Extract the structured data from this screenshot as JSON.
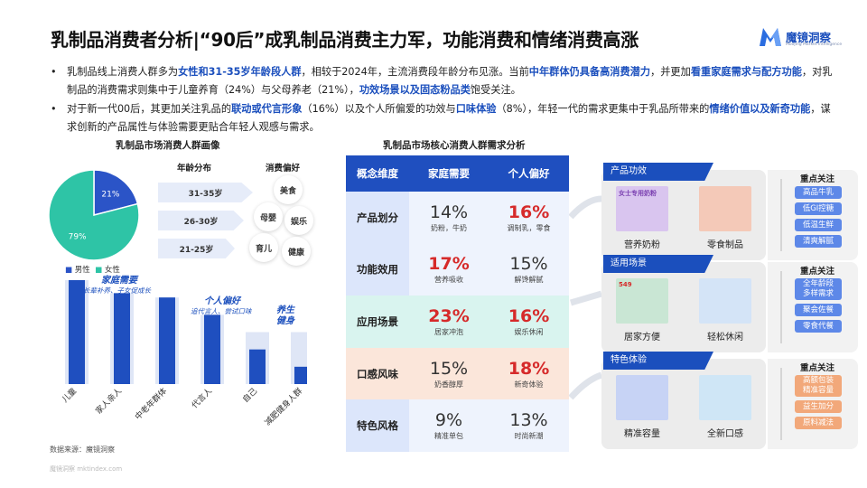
{
  "title": "乳制品消费者分析|“90后”成乳制品消费主力军，功能消费和情绪消费高涨",
  "logo": {
    "name": "魔镜洞察",
    "sub": "Moojing Market Intelligence"
  },
  "bullets": [
    {
      "segments": [
        {
          "t": "乳制品线上消费人群多为",
          "h": false
        },
        {
          "t": "女性和31-35岁年龄段人群",
          "h": true
        },
        {
          "t": "，相较于2024年，主流消费段年龄分布见涨。当前",
          "h": false
        },
        {
          "t": "中年群体仍具备高消费潜力",
          "h": true
        },
        {
          "t": "，并更加",
          "h": false
        },
        {
          "t": "看重家庭需求与配方功能",
          "h": true
        },
        {
          "t": "，对乳制品的消费需求则集中于儿童养育（24%）与父母养老（21%），",
          "h": false
        },
        {
          "t": "功效场景以及固态粉品类",
          "h": true
        },
        {
          "t": "饱受关注。",
          "h": false
        }
      ]
    },
    {
      "segments": [
        {
          "t": "对于新一代00后，其更加关注乳品的",
          "h": false
        },
        {
          "t": "联动或代言形象",
          "h": true
        },
        {
          "t": "（16%）以及个人所偏爱的功效与",
          "h": false
        },
        {
          "t": "口味体验",
          "h": true
        },
        {
          "t": "（8%），年轻一代的需求更集中于乳品所带来的",
          "h": false
        },
        {
          "t": "情绪价值以及新奇功能",
          "h": true
        },
        {
          "t": "，谋求创新的产品属性与体验需要更贴合年轻人观感与需求。",
          "h": false
        }
      ]
    }
  ],
  "left_panel": {
    "title": "乳制品市场消费人群画像",
    "pie_legend": [
      "男性",
      "女性"
    ],
    "age_title": "年龄分布",
    "ages": [
      "31-35岁",
      "26-30岁",
      "21-25岁"
    ],
    "pref_title": "消费偏好",
    "prefs": [
      "美食",
      "母婴",
      "娱乐",
      "育儿",
      "健康"
    ],
    "bubbles": {
      "family": {
        "title": "家庭需要",
        "sub": "长辈补养、子女促成长"
      },
      "personal": {
        "title": "个人偏好",
        "sub": "追代言人、尝试口味"
      },
      "health": {
        "title": "养生\n健身"
      }
    },
    "source": "数据来源：魔镜洞察"
  },
  "chart_data": [
    {
      "type": "pie",
      "categories": [
        "男性",
        "女性"
      ],
      "values": [
        21,
        79
      ],
      "labels": [
        "21%",
        "79%"
      ],
      "colors": [
        "#2b54c7",
        "#2ec4a6"
      ]
    },
    {
      "type": "bar",
      "categories": [
        "儿童",
        "家人亲人",
        "中老年群体",
        "代言人",
        "自己",
        "减肥健身人群"
      ],
      "values": [
        24,
        21,
        20,
        16,
        8,
        4
      ],
      "bg_values": [
        24,
        21,
        20,
        16,
        12,
        12
      ],
      "colors": {
        "bar": "#1f4fbf",
        "bg": "#dfe6f6"
      }
    }
  ],
  "table": {
    "title": "乳制品市场核心消费人群需求分析",
    "headers": [
      "概念维度",
      "家庭需要",
      "个人偏好"
    ],
    "rows": [
      {
        "label": "产品划分",
        "c1": {
          "v": "14%",
          "s": "奶粉，牛奶",
          "red": false
        },
        "c2": {
          "v": "16%",
          "s": "调制乳，零食",
          "red": true
        }
      },
      {
        "label": "功能效用",
        "c1": {
          "v": "17%",
          "s": "营养吸收",
          "red": true
        },
        "c2": {
          "v": "15%",
          "s": "解馋解腻",
          "red": false
        }
      },
      {
        "label": "应用场景",
        "c1": {
          "v": "23%",
          "s": "居家冲泡",
          "red": true
        },
        "c2": {
          "v": "16%",
          "s": "娱乐休闲",
          "red": true
        }
      },
      {
        "label": "口感风味",
        "c1": {
          "v": "15%",
          "s": "奶香醇厚",
          "red": false
        },
        "c2": {
          "v": "18%",
          "s": "新奇体验",
          "red": true
        }
      },
      {
        "label": "特色风格",
        "c1": {
          "v": "9%",
          "s": "精准单包",
          "red": false
        },
        "c2": {
          "v": "13%",
          "s": "时尚新潮",
          "red": false
        }
      }
    ],
    "colors": {
      "header": "#1f4fbf",
      "label_col": "#dce6fb",
      "stripe": "#eef3fd",
      "row3": "#d9f4ef",
      "row4": "#fbe6da"
    }
  },
  "right_panel": {
    "key_focus": "重点关注",
    "groups": [
      {
        "tab": "产品功效",
        "products": [
          "营养奶粉",
          "零食制品"
        ],
        "pills": [
          "高品牛乳",
          "低GI控糖",
          "低温生鲜",
          "清爽解腻"
        ],
        "pill_color": "#5d88e8",
        "box_text": "女士专用奶粉"
      },
      {
        "tab": "适用场景",
        "products": [
          "居家方便",
          "轻松休闲"
        ],
        "pills": [
          "全年龄段\n多样需求",
          "聚会佐餐",
          "零食代餐"
        ],
        "pill_color": "#5d88e8",
        "box_text": "549"
      },
      {
        "tab": "特色体验",
        "products": [
          "精准容量",
          "全新口感"
        ],
        "pills": [
          "高额包装\n精准容量",
          "益生加分",
          "原料减法"
        ],
        "pill_color": "#f2a87a",
        "box_text": ""
      }
    ]
  },
  "watermark": "魔镜洞察 mktindex.com"
}
